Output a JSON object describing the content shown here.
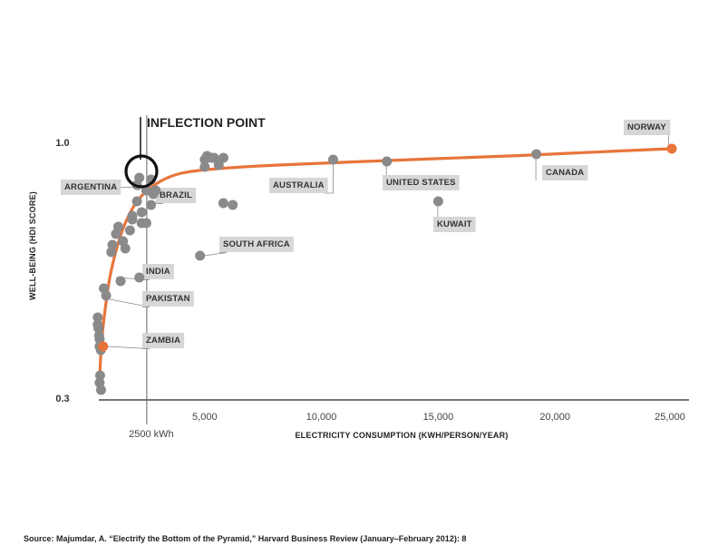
{
  "chart_data": {
    "type": "scatter",
    "xlabel": "ELECTRICITY CONSUMPTION (KWH/PERSON/YEAR)",
    "ylabel": "WELL-BEING (HDI SCORE)",
    "xlim": [
      0,
      25000
    ],
    "ylim": [
      0.3,
      1.0
    ],
    "x_ticks": [
      {
        "value": 5000,
        "label": "5,000"
      },
      {
        "value": 10000,
        "label": "10,000"
      },
      {
        "value": 15000,
        "label": "15,000"
      },
      {
        "value": 20000,
        "label": "20,000"
      },
      {
        "value": 25000,
        "label": "25,000"
      }
    ],
    "y_ticks": [
      {
        "value": 1.0,
        "label": "1.0"
      },
      {
        "value": 0.3,
        "label": "0.3"
      }
    ],
    "reference_line": {
      "x": 2500,
      "label": "2500 kWh"
    },
    "inflection_label": "INFLECTION POINT",
    "inflection_point": {
      "x": 2800,
      "y": 0.905
    },
    "points": [
      {
        "x": 500,
        "y": 0.34
      },
      {
        "x": 520,
        "y": 0.36
      },
      {
        "x": 560,
        "y": 0.32
      },
      {
        "x": 420,
        "y": 0.52
      },
      {
        "x": 450,
        "y": 0.49
      },
      {
        "x": 480,
        "y": 0.47
      },
      {
        "x": 500,
        "y": 0.46
      },
      {
        "x": 420,
        "y": 0.5
      },
      {
        "x": 500,
        "y": 0.44
      },
      {
        "x": 550,
        "y": 0.43
      },
      {
        "x": 680,
        "y": 0.6
      },
      {
        "x": 780,
        "y": 0.58
      },
      {
        "x": 1400,
        "y": 0.62
      },
      {
        "x": 1600,
        "y": 0.71
      },
      {
        "x": 1500,
        "y": 0.73
      },
      {
        "x": 1200,
        "y": 0.75
      },
      {
        "x": 1050,
        "y": 0.72
      },
      {
        "x": 1300,
        "y": 0.77
      },
      {
        "x": 1900,
        "y": 0.8
      },
      {
        "x": 2300,
        "y": 0.78
      },
      {
        "x": 2100,
        "y": 0.84
      },
      {
        "x": 2300,
        "y": 0.81
      },
      {
        "x": 2700,
        "y": 0.83
      },
      {
        "x": 2900,
        "y": 0.87
      },
      {
        "x": 2100,
        "y": 0.885
      },
      {
        "x": 2800,
        "y": 0.86
      },
      {
        "x": 2200,
        "y": 0.905
      },
      {
        "x": 2700,
        "y": 0.9
      },
      {
        "x": 2500,
        "y": 0.87
      },
      {
        "x": 1900,
        "y": 0.79
      },
      {
        "x": 2500,
        "y": 0.78
      },
      {
        "x": 1800,
        "y": 0.76
      },
      {
        "x": 1000,
        "y": 0.7
      },
      {
        "x": 2200,
        "y": 0.63
      },
      {
        "x": 5000,
        "y": 0.955
      },
      {
        "x": 5000,
        "y": 0.935
      },
      {
        "x": 5300,
        "y": 0.96
      },
      {
        "x": 5400,
        "y": 0.96
      },
      {
        "x": 5800,
        "y": 0.96
      },
      {
        "x": 5600,
        "y": 0.94
      },
      {
        "x": 5100,
        "y": 0.965
      },
      {
        "x": 5800,
        "y": 0.835
      },
      {
        "x": 6200,
        "y": 0.83
      },
      {
        "x": 4800,
        "y": 0.69
      },
      {
        "x": 10500,
        "y": 0.955
      },
      {
        "x": 12800,
        "y": 0.95
      },
      {
        "x": 15000,
        "y": 0.84
      },
      {
        "x": 19200,
        "y": 0.97
      }
    ],
    "curve": [
      {
        "x": 500,
        "y": 0.34
      },
      {
        "x": 520,
        "y": 0.38
      },
      {
        "x": 560,
        "y": 0.43
      },
      {
        "x": 620,
        "y": 0.48
      },
      {
        "x": 750,
        "y": 0.55
      },
      {
        "x": 900,
        "y": 0.62
      },
      {
        "x": 1100,
        "y": 0.68
      },
      {
        "x": 1400,
        "y": 0.75
      },
      {
        "x": 1800,
        "y": 0.81
      },
      {
        "x": 2200,
        "y": 0.85
      },
      {
        "x": 2700,
        "y": 0.88
      },
      {
        "x": 3500,
        "y": 0.91
      },
      {
        "x": 4500,
        "y": 0.925
      },
      {
        "x": 7000,
        "y": 0.937
      },
      {
        "x": 10000,
        "y": 0.945
      },
      {
        "x": 13000,
        "y": 0.953
      },
      {
        "x": 16000,
        "y": 0.96
      },
      {
        "x": 19200,
        "y": 0.968
      },
      {
        "x": 22000,
        "y": 0.977
      },
      {
        "x": 25000,
        "y": 0.985
      }
    ],
    "highlighted": [
      {
        "name": "ZAMBIA",
        "x": 650,
        "y": 0.44
      },
      {
        "name": "NORWAY",
        "x": 25000,
        "y": 0.985
      }
    ],
    "callouts": [
      {
        "name": "ARGENTINA",
        "x": 2200,
        "y": 0.87,
        "label_x": 0,
        "label_y": 0.855,
        "side": "left"
      },
      {
        "name": "BRAZIL",
        "x": 2500,
        "y": 0.84,
        "label_x": 3000,
        "label_y": 0.85,
        "side": "right"
      },
      {
        "name": "INDIA",
        "x": 1050,
        "y": 0.63,
        "label_x": 2400,
        "label_y": 0.65,
        "side": "right"
      },
      {
        "name": "PAKISTAN",
        "x": 780,
        "y": 0.57,
        "label_x": 2400,
        "label_y": 0.585,
        "side": "right"
      },
      {
        "name": "ZAMBIA",
        "x": 650,
        "y": 0.44,
        "label_x": 2400,
        "label_y": 0.47,
        "side": "right"
      },
      {
        "name": "SOUTH AFRICA",
        "x": 4800,
        "y": 0.69,
        "label_x": 4900,
        "label_y": 0.715,
        "side": "right"
      },
      {
        "name": "AUSTRALIA",
        "x": 10500,
        "y": 0.955,
        "label_x": 7900,
        "label_y": 0.865,
        "side": "below-left"
      },
      {
        "name": "UNITED STATES",
        "x": 12800,
        "y": 0.95,
        "label_x": 12900,
        "label_y": 0.87,
        "side": "below-right"
      },
      {
        "name": "KUWAIT",
        "x": 15000,
        "y": 0.84,
        "label_x": 15100,
        "label_y": 0.77,
        "side": "below-right"
      },
      {
        "name": "CANADA",
        "x": 19200,
        "y": 0.97,
        "label_x": 19300,
        "label_y": 0.905,
        "side": "below-right"
      },
      {
        "name": "NORWAY",
        "x": 25000,
        "y": 0.985,
        "label_x": 22000,
        "label_y": 1.04,
        "side": "above-left"
      }
    ]
  },
  "colors": {
    "point": "#8a8a8a",
    "curve": "#e8743b",
    "label_bg": "#d6d6d6",
    "axis": "#222222",
    "ref_line": "#666666"
  },
  "source": "Source: Majumdar, A. “Electrify the Bottom of the Pyramid,” Harvard Business Review (January–February 2012): 8"
}
